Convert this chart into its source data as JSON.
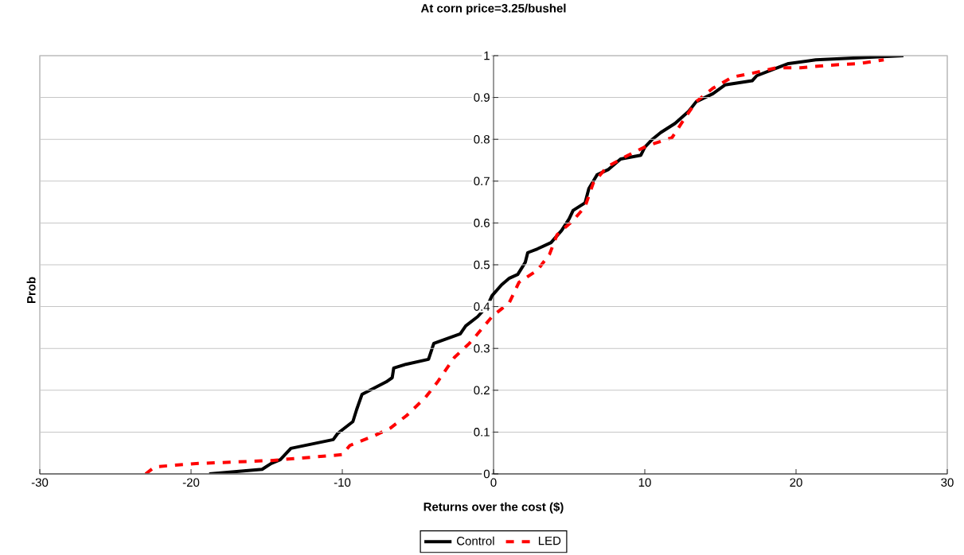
{
  "chart_data": {
    "type": "line",
    "title": "At corn price=3.25/bushel",
    "xlabel": "Returns over the cost ($)",
    "ylabel": "Prob",
    "xlim": [
      -30,
      30
    ],
    "ylim": [
      0,
      1
    ],
    "xticks": [
      -30,
      -20,
      -10,
      0,
      10,
      20,
      30
    ],
    "yticks": [
      0,
      0.1,
      0.2,
      0.3,
      0.4,
      0.5,
      0.6,
      0.7,
      0.8,
      0.9,
      1
    ],
    "grid": "y",
    "legend": "bottom",
    "marker": "none",
    "series": [
      {
        "name": "Control",
        "color": "#000000",
        "line_style": "solid",
        "x": [
          -18.8,
          -15.3,
          -14.7,
          -14.1,
          -13.4,
          -10.6,
          -10.3,
          -9.3,
          -9.05,
          -8.7,
          -7.1,
          -6.7,
          -6.6,
          -5.8,
          -4.3,
          -3.95,
          -2.2,
          -1.84,
          -1.05,
          -0.42,
          -0.1,
          0.53,
          1.05,
          1.6,
          2.1,
          2.26,
          2.9,
          3.8,
          4.5,
          5.0,
          5.26,
          6.05,
          6.3,
          6.84,
          7.6,
          8.4,
          9.74,
          10.0,
          10.5,
          11.05,
          12.0,
          12.9,
          13.4,
          14.5,
          15.3,
          17.1,
          17.4,
          18.4,
          19.5,
          21.3,
          27.1
        ],
        "values": [
          0,
          0.011,
          0.025,
          0.034,
          0.061,
          0.082,
          0.097,
          0.125,
          0.154,
          0.19,
          0.22,
          0.23,
          0.253,
          0.262,
          0.274,
          0.312,
          0.335,
          0.354,
          0.376,
          0.401,
          0.426,
          0.452,
          0.468,
          0.477,
          0.506,
          0.529,
          0.538,
          0.553,
          0.582,
          0.61,
          0.63,
          0.648,
          0.682,
          0.715,
          0.728,
          0.753,
          0.762,
          0.781,
          0.8,
          0.816,
          0.838,
          0.867,
          0.89,
          0.909,
          0.93,
          0.94,
          0.952,
          0.966,
          0.981,
          0.99,
          1
        ]
      },
      {
        "name": "LED",
        "color": "#ff0000",
        "line_style": "dashed",
        "x": [
          -23.0,
          -22.4,
          -19.5,
          -14.7,
          -10.0,
          -9.5,
          -7.9,
          -6.8,
          -5.7,
          -4.5,
          -3.7,
          -2.6,
          -1.6,
          -1.05,
          -0.1,
          1.05,
          1.68,
          2.9,
          3.7,
          4.2,
          5.26,
          6.05,
          6.6,
          7.5,
          8.9,
          10.2,
          11.8,
          12.6,
          13.4,
          14.5,
          15.8,
          17.1,
          18.7,
          20.3,
          22.1,
          24.2,
          25.8
        ],
        "values": [
          0,
          0.017,
          0.025,
          0.032,
          0.046,
          0.068,
          0.091,
          0.11,
          0.141,
          0.183,
          0.22,
          0.278,
          0.312,
          0.335,
          0.376,
          0.41,
          0.458,
          0.487,
          0.525,
          0.572,
          0.606,
          0.639,
          0.696,
          0.734,
          0.762,
          0.785,
          0.804,
          0.848,
          0.89,
          0.922,
          0.949,
          0.958,
          0.971,
          0.971,
          0.977,
          0.981,
          0.99
        ]
      }
    ]
  }
}
